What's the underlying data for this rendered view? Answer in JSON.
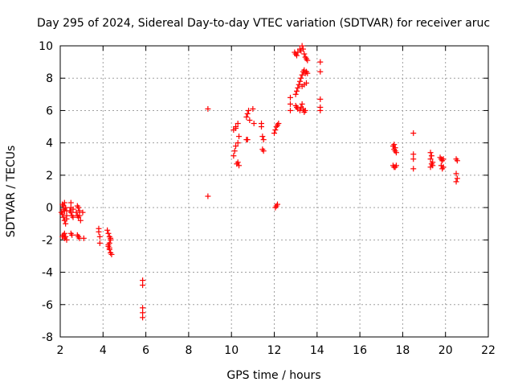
{
  "chart_data": {
    "type": "scatter",
    "title": "Day 295 of 2024, Sidereal Day-to-day VTEC variation (SDTVAR) for receiver aruc",
    "xlabel": "GPS time / hours",
    "ylabel": "SDTVAR / TECUs",
    "xlim": [
      2,
      22
    ],
    "ylim": [
      -8,
      10
    ],
    "xticks": [
      2,
      4,
      6,
      8,
      10,
      12,
      14,
      16,
      18,
      20,
      22
    ],
    "yticks": [
      -8,
      -6,
      -4,
      -2,
      0,
      2,
      4,
      6,
      8,
      10
    ],
    "grid": true,
    "marker": "+",
    "color": "#ff0000",
    "series": [
      {
        "name": "SDTVAR",
        "points": [
          [
            2.1,
            0.2
          ],
          [
            2.15,
            0.1
          ],
          [
            2.2,
            0.3
          ],
          [
            2.25,
            0.0
          ],
          [
            2.3,
            -0.2
          ],
          [
            2.1,
            -0.4
          ],
          [
            2.15,
            -0.6
          ],
          [
            2.2,
            -0.8
          ],
          [
            2.25,
            -1.0
          ],
          [
            2.3,
            -0.5
          ],
          [
            2.05,
            -0.3
          ],
          [
            2.1,
            -1.8
          ],
          [
            2.15,
            -1.7
          ],
          [
            2.2,
            -1.9
          ],
          [
            2.25,
            -1.8
          ],
          [
            2.3,
            -2.0
          ],
          [
            2.2,
            -1.6
          ],
          [
            2.15,
            -0.1
          ],
          [
            2.2,
            -0.2
          ],
          [
            2.3,
            -0.7
          ],
          [
            2.5,
            0.3
          ],
          [
            2.5,
            0.0
          ],
          [
            2.5,
            -0.3
          ],
          [
            2.55,
            -0.5
          ],
          [
            2.6,
            -0.6
          ],
          [
            2.5,
            -1.6
          ],
          [
            2.55,
            -1.7
          ],
          [
            2.45,
            -0.2
          ],
          [
            2.6,
            -0.1
          ],
          [
            2.75,
            -0.3
          ],
          [
            2.8,
            0.1
          ],
          [
            2.85,
            0.0
          ],
          [
            2.9,
            -0.2
          ],
          [
            2.8,
            -0.5
          ],
          [
            2.85,
            -0.6
          ],
          [
            2.9,
            -0.5
          ],
          [
            2.95,
            -0.8
          ],
          [
            2.8,
            -1.7
          ],
          [
            2.85,
            -1.8
          ],
          [
            2.9,
            -1.9
          ],
          [
            3.05,
            -0.3
          ],
          [
            3.1,
            -1.9
          ],
          [
            3.8,
            -1.3
          ],
          [
            3.8,
            -1.5
          ],
          [
            3.85,
            -1.8
          ],
          [
            3.85,
            -2.2
          ],
          [
            4.2,
            -1.4
          ],
          [
            4.25,
            -1.6
          ],
          [
            4.3,
            -1.8
          ],
          [
            4.35,
            -2.0
          ],
          [
            4.3,
            -2.2
          ],
          [
            4.25,
            -2.4
          ],
          [
            4.3,
            -2.6
          ],
          [
            4.35,
            -2.8
          ],
          [
            4.4,
            -2.9
          ],
          [
            4.35,
            -1.9
          ],
          [
            4.3,
            -2.5
          ],
          [
            4.25,
            -2.3
          ],
          [
            5.85,
            -4.5
          ],
          [
            5.85,
            -4.8
          ],
          [
            5.85,
            -6.2
          ],
          [
            5.85,
            -6.5
          ],
          [
            5.85,
            -6.8
          ],
          [
            8.9,
            6.1
          ],
          [
            8.9,
            0.7
          ],
          [
            10.1,
            3.2
          ],
          [
            10.15,
            3.5
          ],
          [
            10.2,
            3.8
          ],
          [
            10.1,
            4.8
          ],
          [
            10.2,
            5.0
          ],
          [
            10.3,
            5.2
          ],
          [
            10.3,
            4.0
          ],
          [
            10.35,
            4.4
          ],
          [
            10.25,
            2.7
          ],
          [
            10.3,
            2.8
          ],
          [
            10.35,
            2.6
          ],
          [
            10.2,
            4.9
          ],
          [
            10.7,
            4.2
          ],
          [
            10.75,
            4.2
          ],
          [
            10.7,
            5.6
          ],
          [
            10.75,
            5.8
          ],
          [
            10.8,
            6.0
          ],
          [
            10.85,
            5.4
          ],
          [
            11.0,
            6.1
          ],
          [
            11.05,
            5.2
          ],
          [
            11.4,
            5.2
          ],
          [
            11.45,
            4.4
          ],
          [
            11.5,
            4.2
          ],
          [
            11.45,
            3.6
          ],
          [
            11.5,
            3.5
          ],
          [
            11.4,
            5.0
          ],
          [
            12.0,
            4.6
          ],
          [
            12.05,
            4.8
          ],
          [
            12.1,
            5.0
          ],
          [
            12.15,
            5.1
          ],
          [
            12.2,
            5.2
          ],
          [
            12.1,
            0.1
          ],
          [
            12.15,
            0.2
          ],
          [
            12.05,
            0.0
          ],
          [
            12.75,
            6.8
          ],
          [
            12.75,
            6.4
          ],
          [
            12.75,
            6.0
          ],
          [
            12.95,
            9.6
          ],
          [
            13.0,
            9.5
          ],
          [
            13.05,
            9.4
          ],
          [
            13.1,
            9.6
          ],
          [
            13.2,
            9.8
          ],
          [
            13.25,
            9.7
          ],
          [
            13.3,
            10.0
          ],
          [
            13.35,
            9.8
          ],
          [
            13.4,
            9.5
          ],
          [
            13.45,
            9.3
          ],
          [
            13.5,
            9.2
          ],
          [
            13.55,
            9.1
          ],
          [
            13.0,
            7.0
          ],
          [
            13.05,
            7.2
          ],
          [
            13.1,
            7.4
          ],
          [
            13.15,
            7.6
          ],
          [
            13.2,
            7.8
          ],
          [
            13.25,
            8.0
          ],
          [
            13.3,
            8.2
          ],
          [
            13.35,
            8.4
          ],
          [
            13.4,
            8.5
          ],
          [
            13.45,
            8.3
          ],
          [
            13.5,
            8.4
          ],
          [
            13.55,
            8.3
          ],
          [
            13.3,
            7.5
          ],
          [
            13.4,
            7.6
          ],
          [
            13.5,
            7.7
          ],
          [
            13.0,
            6.3
          ],
          [
            13.05,
            6.2
          ],
          [
            13.1,
            6.1
          ],
          [
            13.2,
            6.0
          ],
          [
            13.25,
            6.2
          ],
          [
            13.3,
            6.4
          ],
          [
            13.35,
            6.1
          ],
          [
            13.4,
            5.9
          ],
          [
            13.45,
            6.0
          ],
          [
            14.15,
            9.0
          ],
          [
            14.15,
            8.4
          ],
          [
            14.15,
            6.7
          ],
          [
            14.15,
            6.2
          ],
          [
            14.15,
            6.0
          ],
          [
            17.55,
            3.8
          ],
          [
            17.6,
            3.6
          ],
          [
            17.65,
            3.5
          ],
          [
            17.7,
            3.4
          ],
          [
            17.6,
            3.9
          ],
          [
            17.65,
            3.7
          ],
          [
            17.55,
            2.6
          ],
          [
            17.6,
            2.5
          ],
          [
            17.65,
            2.5
          ],
          [
            17.7,
            2.6
          ],
          [
            18.5,
            4.6
          ],
          [
            18.5,
            3.3
          ],
          [
            18.5,
            3.0
          ],
          [
            18.5,
            2.4
          ],
          [
            19.3,
            3.4
          ],
          [
            19.35,
            3.2
          ],
          [
            19.3,
            3.0
          ],
          [
            19.35,
            2.7
          ],
          [
            19.4,
            2.6
          ],
          [
            19.3,
            2.5
          ],
          [
            19.4,
            2.8
          ],
          [
            19.75,
            3.1
          ],
          [
            19.8,
            3.0
          ],
          [
            19.85,
            2.9
          ],
          [
            19.8,
            2.6
          ],
          [
            19.85,
            2.4
          ],
          [
            19.9,
            2.5
          ],
          [
            19.9,
            3.0
          ],
          [
            20.5,
            3.0
          ],
          [
            20.55,
            2.9
          ],
          [
            20.5,
            2.1
          ],
          [
            20.5,
            1.6
          ],
          [
            20.55,
            1.8
          ]
        ]
      }
    ]
  }
}
